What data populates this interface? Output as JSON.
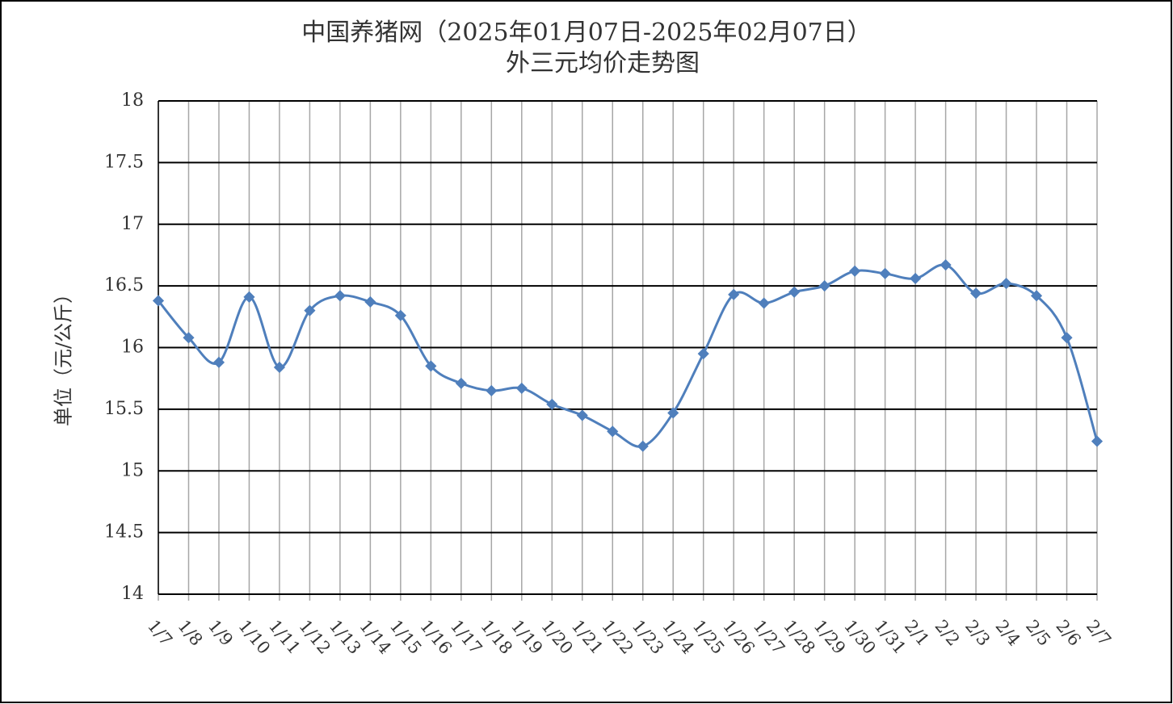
{
  "chart_data": {
    "type": "line",
    "title": "中国养猪网（2025年01月07日-2025年02月07日）",
    "subtitle": "外三元均价走势图",
    "y_label": "单位（元/公斤）",
    "categories": [
      "1/7",
      "1/8",
      "1/9",
      "1/10",
      "1/11",
      "1/12",
      "1/13",
      "1/14",
      "1/15",
      "1/16",
      "1/17",
      "1/18",
      "1/19",
      "1/20",
      "1/21",
      "1/22",
      "1/23",
      "1/24",
      "1/25",
      "1/26",
      "1/27",
      "1/28",
      "1/29",
      "1/30",
      "1/31",
      "2/1",
      "2/2",
      "2/3",
      "2/4",
      "2/5",
      "2/6",
      "2/7"
    ],
    "values": [
      16.38,
      16.08,
      15.88,
      16.41,
      15.84,
      16.3,
      16.42,
      16.37,
      16.26,
      15.85,
      15.71,
      15.65,
      15.67,
      15.54,
      15.45,
      15.32,
      15.2,
      15.47,
      15.95,
      16.43,
      16.36,
      16.45,
      16.5,
      16.62,
      16.6,
      16.56,
      16.67,
      16.44,
      16.52,
      16.42,
      16.08,
      15.24
    ],
    "color": "#4f7fbc",
    "ylim": [
      14,
      18
    ],
    "yticks": [
      14,
      14.5,
      15,
      15.5,
      16,
      16.5,
      17,
      17.5,
      18
    ],
    "grid": true
  }
}
